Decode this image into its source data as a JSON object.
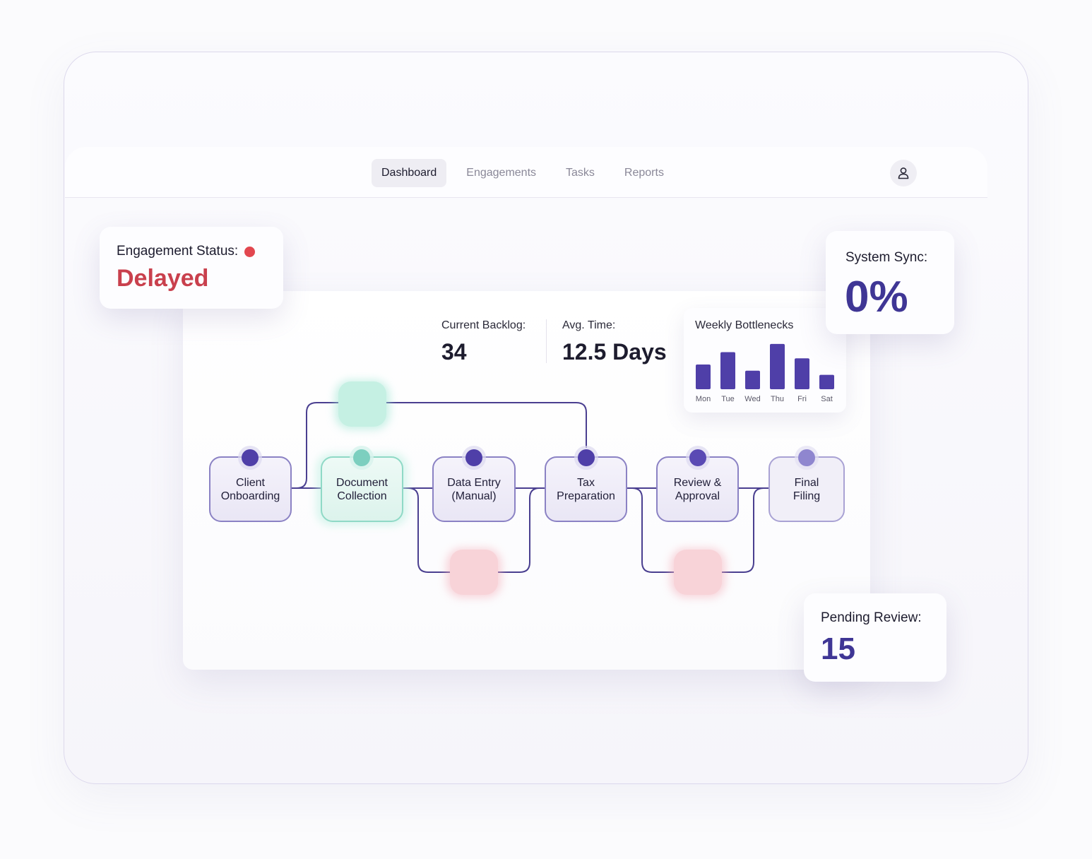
{
  "nav": {
    "tabs": [
      {
        "label": "Dashboard",
        "active": true
      },
      {
        "label": "Engagements",
        "active": false
      },
      {
        "label": "Tasks",
        "active": false
      },
      {
        "label": "Reports",
        "active": false
      }
    ],
    "avatar_icon": "user-icon"
  },
  "status": {
    "label": "Engagement Status:",
    "value": "Delayed",
    "indicator_color": "#e2474f"
  },
  "sync": {
    "label": "System Sync:",
    "value": "0%"
  },
  "pending": {
    "label": "Pending Review:",
    "value": "15"
  },
  "metrics": {
    "backlog_label": "Current Backlog:",
    "backlog_value": "34",
    "avg_label": "Avg. Time:",
    "avg_value": "12.5 Days"
  },
  "chart_data": {
    "type": "bar",
    "title": "Weekly Bottlenecks",
    "categories": [
      "Mon",
      "Tue",
      "Wed",
      "Thu",
      "Fri",
      "Sat"
    ],
    "values": [
      6,
      9,
      4.5,
      11,
      7.5,
      3.5
    ],
    "ylim": [
      0,
      12
    ],
    "grid": false,
    "bar_color": "#4f3fa8"
  },
  "workflow": {
    "steps": [
      {
        "line1": "Client",
        "line2": "Onboarding",
        "state": "normal"
      },
      {
        "line1": "Document",
        "line2": "Collection",
        "state": "active"
      },
      {
        "line1": "Data Entry",
        "line2": "(Manual)",
        "state": "normal"
      },
      {
        "line1": "Tax",
        "line2": "Preparation",
        "state": "normal"
      },
      {
        "line1": "Review &",
        "line2": "Approval",
        "state": "normal"
      },
      {
        "line1": "Final",
        "line2": "Filing",
        "state": "muted"
      }
    ],
    "colors": {
      "node_dot": "#4f3fa8",
      "active_dot": "#7ccfbf",
      "muted_dot": "#8f86cf",
      "connector": "#4a3f90",
      "bottleneck": "#f7c8cf",
      "bypass": "#bfeee2"
    }
  }
}
